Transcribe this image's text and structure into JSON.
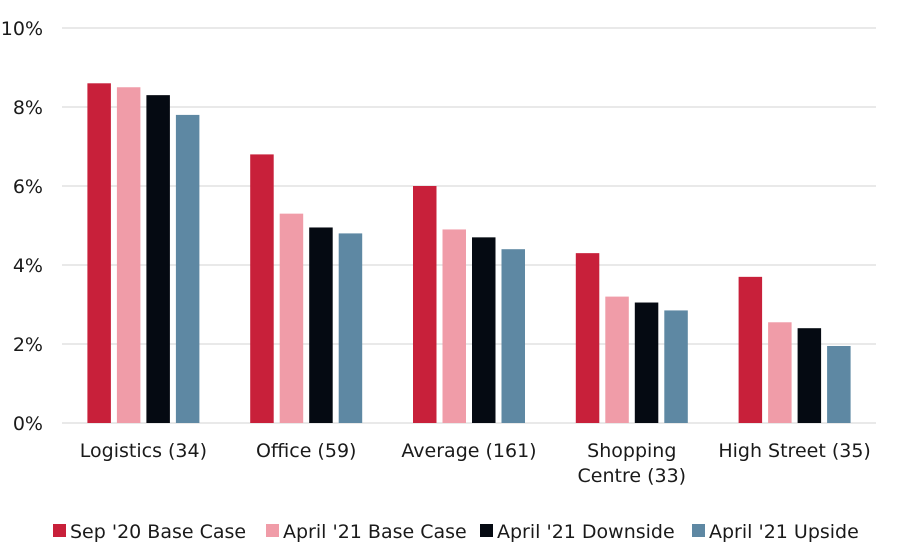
{
  "chart_data": {
    "type": "bar",
    "categories": [
      [
        "Logistics (34)"
      ],
      [
        "Office (59)"
      ],
      [
        "Average (161)"
      ],
      [
        "Shopping",
        "Centre (33)"
      ],
      [
        "High Street (35)"
      ]
    ],
    "series": [
      {
        "name": "Sep '20 Base Case",
        "color": "#c8203a",
        "values": [
          8.6,
          6.8,
          6.0,
          4.3,
          3.7
        ]
      },
      {
        "name": "April '21 Base Case",
        "color": "#f09ca8",
        "values": [
          8.5,
          5.3,
          4.9,
          3.2,
          2.55
        ]
      },
      {
        "name": "April '21 Downside",
        "color": "#050a12",
        "values": [
          8.3,
          4.95,
          4.7,
          3.05,
          2.4
        ]
      },
      {
        "name": "April '21 Upside",
        "color": "#5e88a3",
        "values": [
          7.8,
          4.8,
          4.4,
          2.85,
          1.95
        ]
      }
    ],
    "y_ticks": [
      "0%",
      "2%",
      "4%",
      "6%",
      "8%",
      "10%"
    ],
    "ylim": [
      0,
      10
    ],
    "grid": true,
    "legend_position": "bottom"
  }
}
